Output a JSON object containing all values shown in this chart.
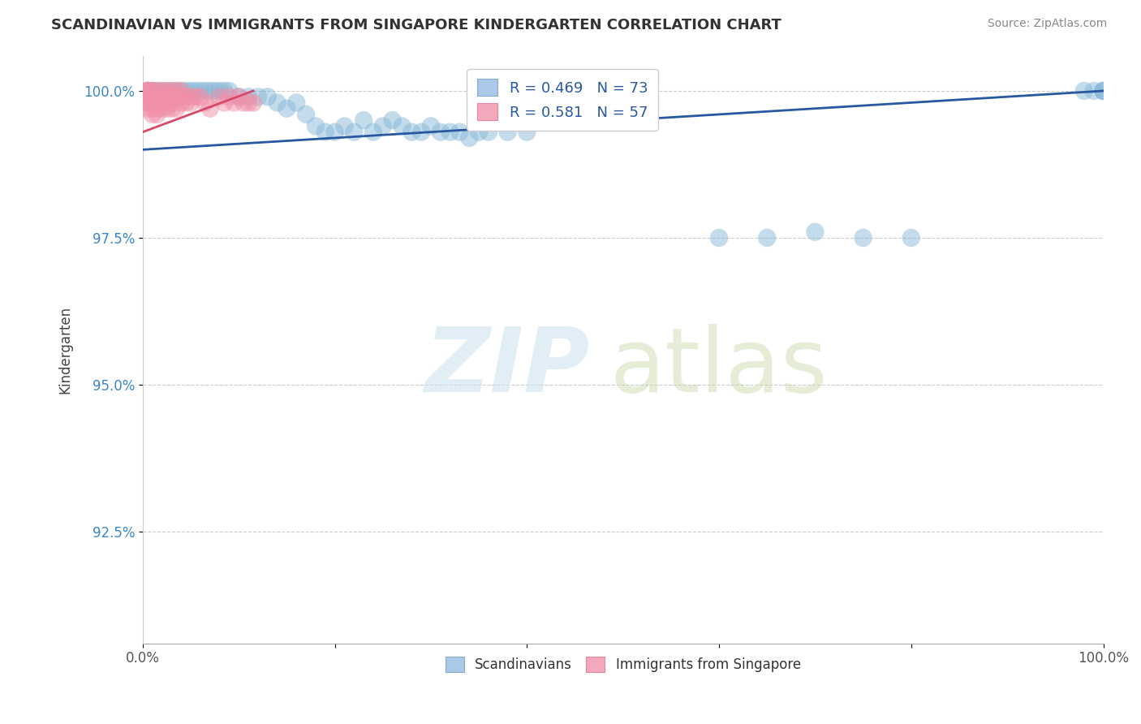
{
  "title": "SCANDINAVIAN VS IMMIGRANTS FROM SINGAPORE KINDERGARTEN CORRELATION CHART",
  "source": "Source: ZipAtlas.com",
  "ylabel": "Kindergarten",
  "xlim": [
    0,
    1.0
  ],
  "ylim": [
    0.906,
    1.006
  ],
  "yticks": [
    0.925,
    0.95,
    0.975,
    1.0
  ],
  "ytick_labels": [
    "92.5%",
    "95.0%",
    "97.5%",
    "100.0%"
  ],
  "xtick_positions": [
    0.0,
    0.2,
    0.4,
    0.6,
    0.8,
    1.0
  ],
  "xtick_labels": [
    "0.0%",
    "",
    "",
    "",
    "",
    "100.0%"
  ],
  "legend_blue_label": "R = 0.469   N = 73",
  "legend_pink_label": "R = 0.581   N = 57",
  "legend_blue_color": "#aac8e8",
  "legend_pink_color": "#f4a8bc",
  "scatter_blue_color": "#88b8d8",
  "scatter_pink_color": "#f090a8",
  "trend_blue_color": "#2858a0",
  "trend_pink_color": "#d84868",
  "background_color": "#ffffff",
  "grid_color": "#cccccc",
  "blue_x": [
    0.005,
    0.01,
    0.015,
    0.02,
    0.025,
    0.03,
    0.035,
    0.04,
    0.045,
    0.05,
    0.055,
    0.06,
    0.065,
    0.07,
    0.075,
    0.08,
    0.085,
    0.09,
    0.1,
    0.11,
    0.12,
    0.13,
    0.14,
    0.15,
    0.16,
    0.17,
    0.18,
    0.19,
    0.2,
    0.21,
    0.22,
    0.23,
    0.24,
    0.25,
    0.26,
    0.27,
    0.28,
    0.29,
    0.3,
    0.31,
    0.32,
    0.33,
    0.34,
    0.35,
    0.36,
    0.38,
    0.4,
    0.6,
    0.65,
    0.7,
    0.75,
    0.8,
    0.98,
    0.99,
    1.0,
    1.0,
    1.0
  ],
  "blue_y": [
    1.0,
    1.0,
    1.0,
    1.0,
    1.0,
    1.0,
    1.0,
    1.0,
    1.0,
    1.0,
    1.0,
    1.0,
    1.0,
    1.0,
    1.0,
    1.0,
    1.0,
    1.0,
    0.999,
    0.999,
    0.999,
    0.999,
    0.998,
    0.997,
    0.998,
    0.996,
    0.994,
    0.993,
    0.993,
    0.994,
    0.993,
    0.995,
    0.993,
    0.994,
    0.995,
    0.994,
    0.993,
    0.993,
    0.994,
    0.993,
    0.993,
    0.993,
    0.992,
    0.993,
    0.993,
    0.993,
    0.993,
    0.975,
    0.975,
    0.976,
    0.975,
    0.975,
    1.0,
    1.0,
    1.0,
    1.0,
    1.0
  ],
  "pink_x": [
    0.005,
    0.005,
    0.005,
    0.005,
    0.005,
    0.005,
    0.005,
    0.005,
    0.005,
    0.01,
    0.01,
    0.01,
    0.01,
    0.01,
    0.01,
    0.01,
    0.015,
    0.015,
    0.015,
    0.015,
    0.015,
    0.02,
    0.02,
    0.02,
    0.02,
    0.02,
    0.025,
    0.025,
    0.025,
    0.025,
    0.03,
    0.03,
    0.03,
    0.03,
    0.035,
    0.035,
    0.035,
    0.04,
    0.04,
    0.04,
    0.045,
    0.045,
    0.05,
    0.05,
    0.055,
    0.06,
    0.065,
    0.07,
    0.08,
    0.085,
    0.09,
    0.095,
    0.1,
    0.105,
    0.11,
    0.115
  ],
  "pink_y": [
    1.0,
    1.0,
    1.0,
    1.0,
    0.999,
    0.999,
    0.998,
    0.998,
    0.997,
    1.0,
    1.0,
    0.999,
    0.999,
    0.998,
    0.997,
    0.996,
    1.0,
    0.999,
    0.998,
    0.997,
    0.996,
    1.0,
    0.999,
    0.999,
    0.998,
    0.997,
    1.0,
    0.999,
    0.998,
    0.997,
    1.0,
    0.999,
    0.998,
    0.997,
    1.0,
    0.999,
    0.997,
    1.0,
    0.999,
    0.998,
    0.999,
    0.998,
    0.999,
    0.998,
    0.999,
    0.999,
    0.998,
    0.997,
    0.999,
    0.998,
    0.999,
    0.998,
    0.999,
    0.998,
    0.998,
    0.998
  ],
  "blue_trend_x": [
    0.0,
    1.0
  ],
  "blue_trend_y": [
    0.99,
    1.0
  ],
  "pink_trend_x": [
    0.0,
    0.115
  ],
  "pink_trend_y": [
    0.993,
    1.0
  ]
}
